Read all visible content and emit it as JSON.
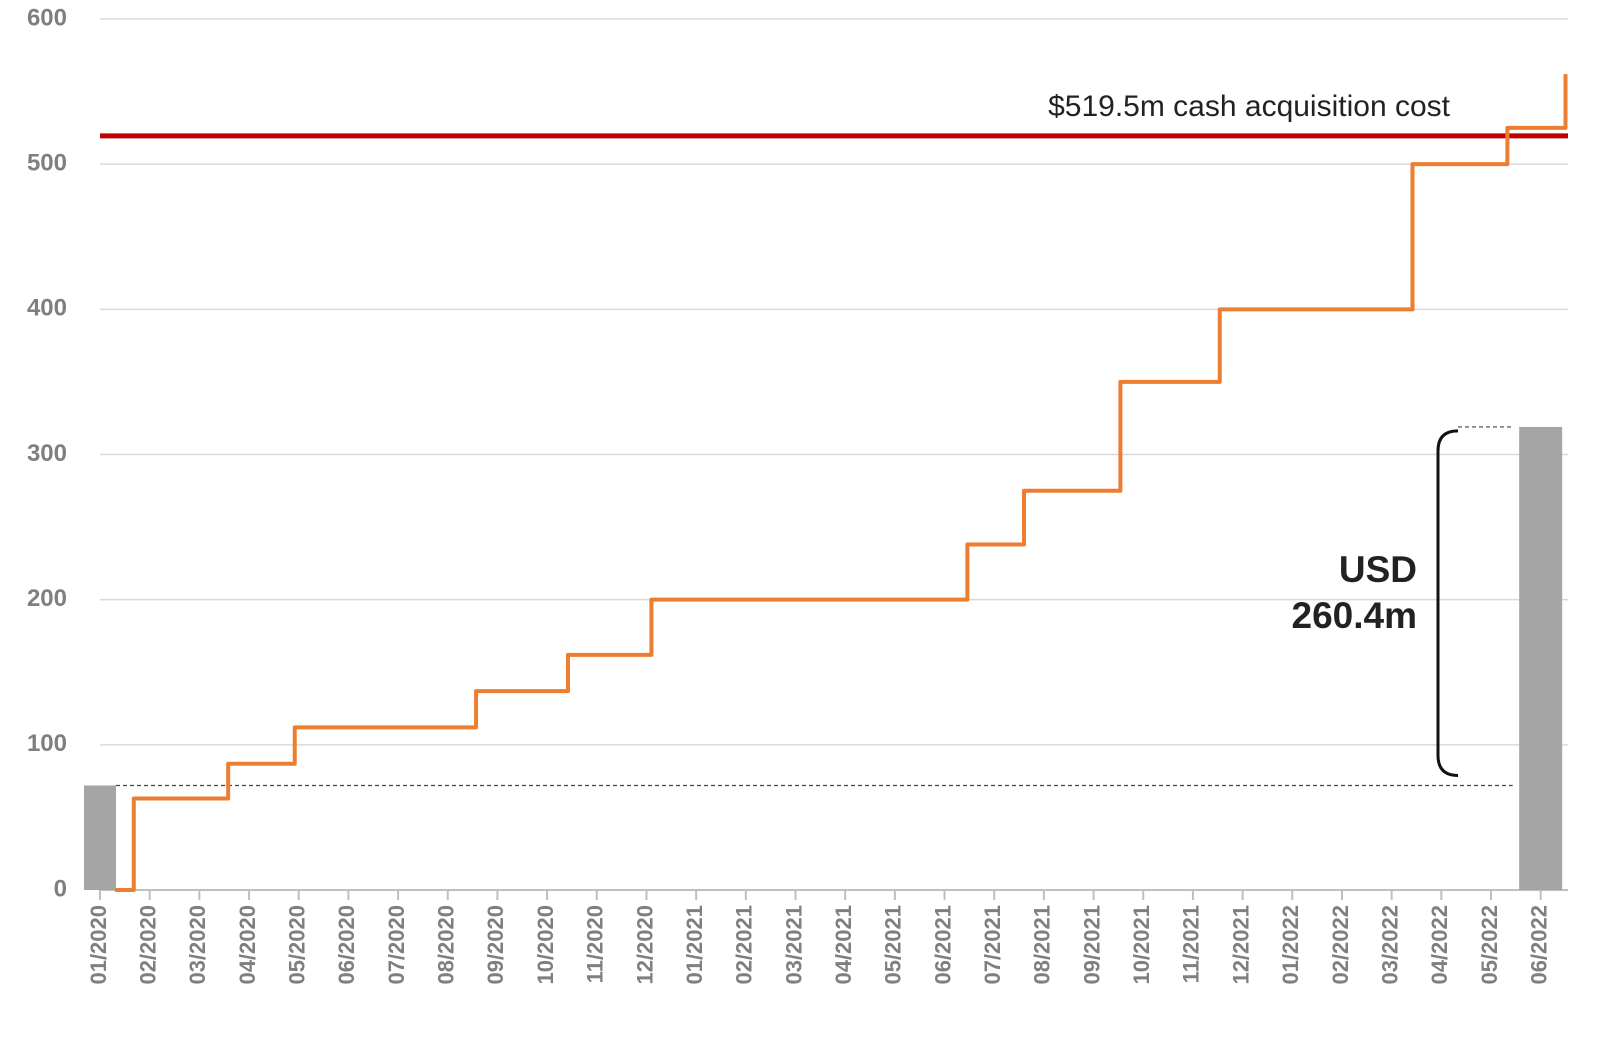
{
  "chart_data": {
    "type": "line",
    "step": "post",
    "x": [
      0.3,
      0.68,
      2.58,
      3.92,
      7.57,
      9.42,
      11.1,
      17.46,
      18.6,
      20.54,
      22.54,
      26.42,
      28.33,
      29.5
    ],
    "values": [
      0,
      63,
      87,
      112,
      137,
      162,
      200,
      238,
      275,
      350,
      400,
      500,
      525,
      562
    ],
    "color": "#ED7D31",
    "bars": {
      "x": [
        0,
        29
      ],
      "values": [
        72,
        319
      ],
      "color": "#A5A5A5"
    },
    "reference_line": {
      "value": 519.5,
      "label": "$519.5m cash acquisition cost",
      "color": "#C00000"
    },
    "annotation": [
      "USD",
      "260.4m"
    ],
    "ylim": [
      0,
      600
    ],
    "yticks": [
      0,
      100,
      200,
      300,
      400,
      500,
      600
    ],
    "xlim": [
      0,
      29.55
    ],
    "xticks": [
      {
        "value": 0,
        "label": "01/2020"
      },
      {
        "value": 1,
        "label": "02/2020"
      },
      {
        "value": 2,
        "label": "03/2020"
      },
      {
        "value": 3,
        "label": "04/2020"
      },
      {
        "value": 4,
        "label": "05/2020"
      },
      {
        "value": 5,
        "label": "06/2020"
      },
      {
        "value": 6,
        "label": "07/2020"
      },
      {
        "value": 7,
        "label": "08/2020"
      },
      {
        "value": 8,
        "label": "09/2020"
      },
      {
        "value": 9,
        "label": "10/2020"
      },
      {
        "value": 10,
        "label": "11/2020"
      },
      {
        "value": 11,
        "label": "12/2020"
      },
      {
        "value": 12,
        "label": "01/2021"
      },
      {
        "value": 13,
        "label": "02/2021"
      },
      {
        "value": 14,
        "label": "03/2021"
      },
      {
        "value": 15,
        "label": "04/2021"
      },
      {
        "value": 16,
        "label": "05/2021"
      },
      {
        "value": 17,
        "label": "06/2021"
      },
      {
        "value": 18,
        "label": "07/2021"
      },
      {
        "value": 19,
        "label": "08/2021"
      },
      {
        "value": 20,
        "label": "09/2021"
      },
      {
        "value": 21,
        "label": "10/2021"
      },
      {
        "value": 22,
        "label": "11/2021"
      },
      {
        "value": 23,
        "label": "12/2021"
      },
      {
        "value": 24,
        "label": "01/2022"
      },
      {
        "value": 25,
        "label": "02/2022"
      },
      {
        "value": 26,
        "label": "03/2022"
      },
      {
        "value": 27,
        "label": "04/2022"
      },
      {
        "value": 28,
        "label": "05/2022"
      },
      {
        "value": 29,
        "label": "06/2022"
      }
    ],
    "grid": true
  }
}
